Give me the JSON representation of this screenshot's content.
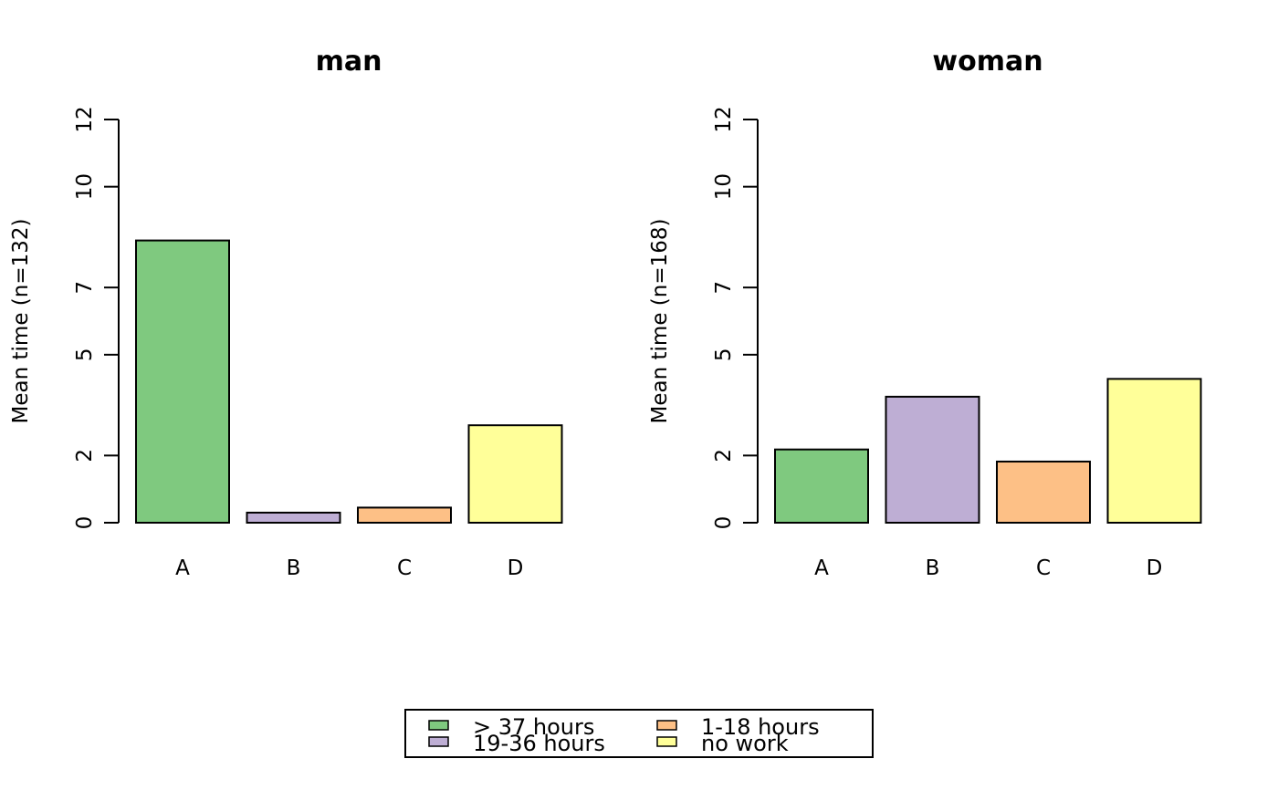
{
  "chart_data": [
    {
      "type": "bar",
      "title": "man",
      "ylabel": "Mean time (n=132)",
      "categories": [
        "A",
        "B",
        "C",
        "D"
      ],
      "values": [
        8.4,
        0.3,
        0.45,
        2.9
      ],
      "colors": [
        "#7FC97F",
        "#BEAED4",
        "#FDC086",
        "#FFFF99"
      ],
      "ylim": [
        0,
        12
      ],
      "yticks": [
        0,
        2,
        5,
        7,
        10,
        12
      ]
    },
    {
      "type": "bar",
      "title": "woman",
      "ylabel": "Mean time (n=168)",
      "categories": [
        "A",
        "B",
        "C",
        "D"
      ],
      "values": [
        2.18,
        3.75,
        1.82,
        4.28
      ],
      "colors": [
        "#7FC97F",
        "#BEAED4",
        "#FDC086",
        "#FFFF99"
      ],
      "ylim": [
        0,
        12
      ],
      "yticks": [
        0,
        2,
        5,
        7,
        10,
        12
      ]
    }
  ],
  "legend": {
    "position": "bottom",
    "items": [
      {
        "label": "> 37 hours",
        "color": "#7FC97F"
      },
      {
        "label": "19-36 hours",
        "color": "#BEAED4"
      },
      {
        "label": "1-18 hours",
        "color": "#FDC086"
      },
      {
        "label": "no work",
        "color": "#FFFF99"
      }
    ]
  }
}
